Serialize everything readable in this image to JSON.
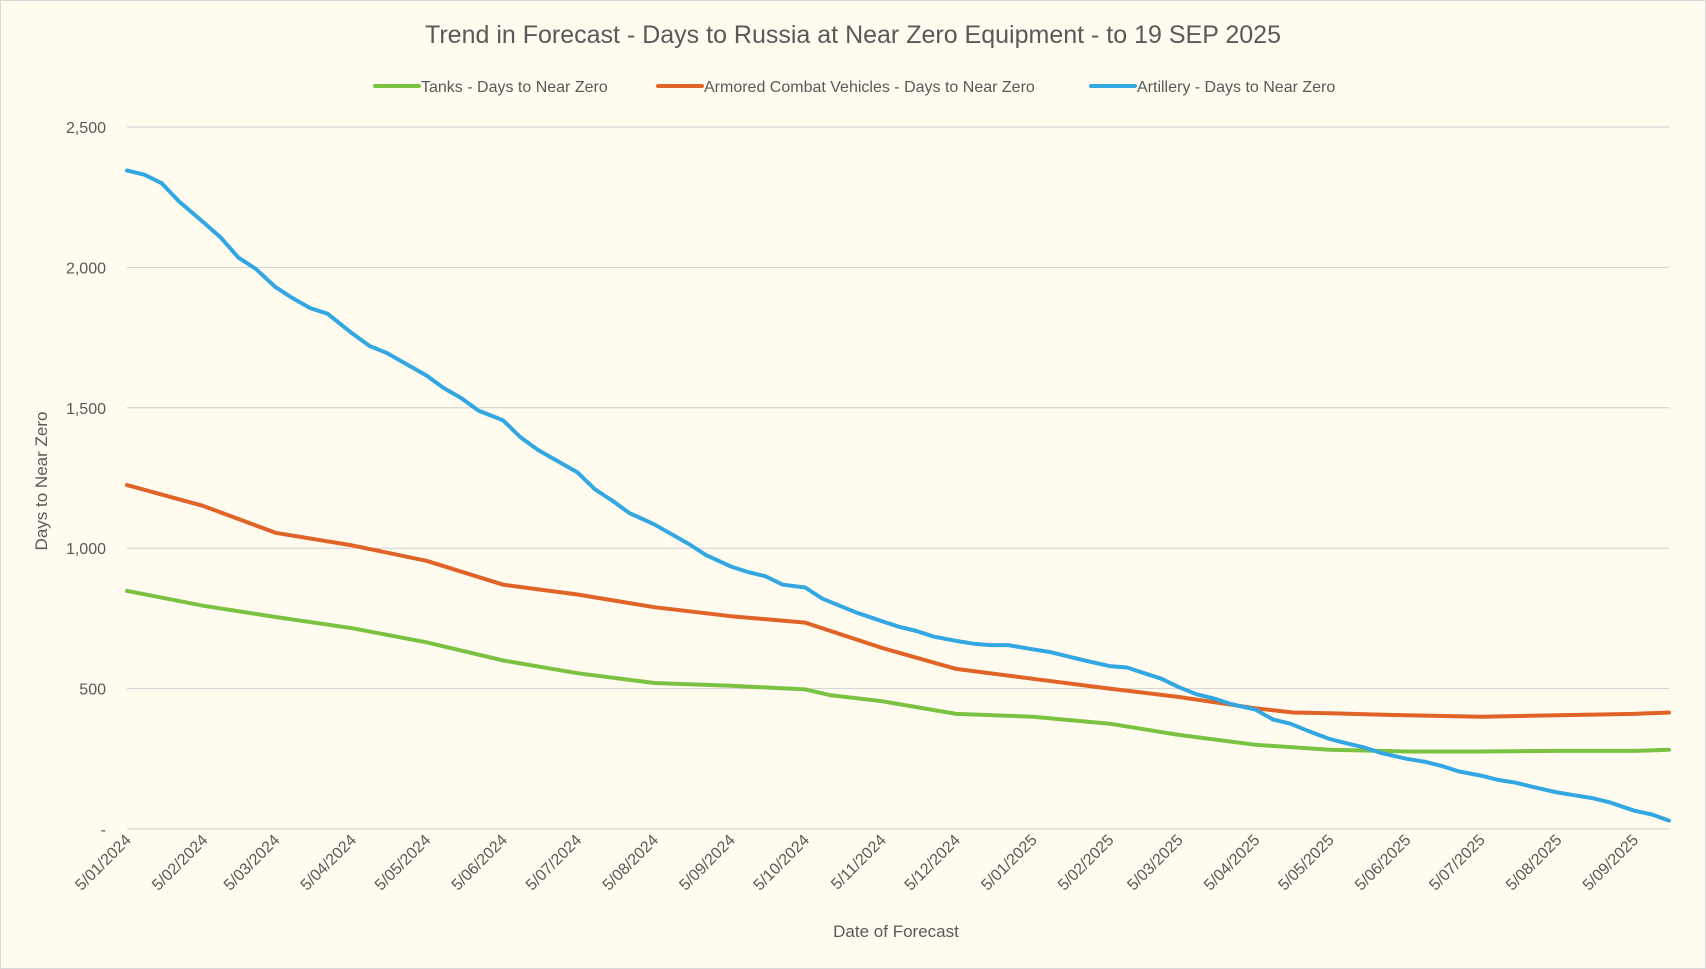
{
  "chart_data": {
    "type": "line",
    "title": "Trend in Forecast - Days to Russia at Near Zero Equipment - to 19 SEP 2025",
    "xlabel": "Date of Forecast",
    "ylabel": "Days to Near Zero",
    "ylim": [
      0,
      2500
    ],
    "y_ticks": [
      0,
      500,
      1000,
      1500,
      2000,
      2500
    ],
    "y_tick_labels": [
      "-",
      "500",
      "1,000",
      "1,500",
      "2,000",
      "2,500"
    ],
    "x_tick_labels": [
      "5/01/2024",
      "5/02/2024",
      "5/03/2024",
      "5/04/2024",
      "5/05/2024",
      "5/06/2024",
      "5/07/2024",
      "5/08/2024",
      "5/09/2024",
      "5/10/2024",
      "5/11/2024",
      "5/12/2024",
      "5/01/2025",
      "5/02/2025",
      "5/03/2025",
      "5/04/2025",
      "5/05/2025",
      "5/06/2025",
      "5/07/2025",
      "5/08/2025",
      "5/09/2025"
    ],
    "x_range": [
      "2024-01-05",
      "2025-09-19"
    ],
    "grid": true,
    "legend_position": "top",
    "series": [
      {
        "name": "Tanks - Days to Near Zero",
        "color": "#7cc242",
        "points": [
          [
            "2024-01-05",
            848
          ],
          [
            "2024-02-05",
            795
          ],
          [
            "2024-03-05",
            755
          ],
          [
            "2024-04-05",
            715
          ],
          [
            "2024-05-05",
            665
          ],
          [
            "2024-06-05",
            600
          ],
          [
            "2024-07-05",
            555
          ],
          [
            "2024-08-05",
            520
          ],
          [
            "2024-09-05",
            510
          ],
          [
            "2024-10-05",
            497
          ],
          [
            "2024-10-15",
            477
          ],
          [
            "2024-11-05",
            455
          ],
          [
            "2024-12-05",
            410
          ],
          [
            "2025-01-05",
            400
          ],
          [
            "2025-02-05",
            375
          ],
          [
            "2025-03-05",
            335
          ],
          [
            "2025-04-05",
            300
          ],
          [
            "2025-05-05",
            282
          ],
          [
            "2025-06-05",
            276
          ],
          [
            "2025-07-05",
            276
          ],
          [
            "2025-08-05",
            278
          ],
          [
            "2025-09-05",
            278
          ],
          [
            "2025-09-19",
            282
          ]
        ]
      },
      {
        "name": "Armored Combat Vehicles - Days to Near Zero",
        "color": "#e06327",
        "points": [
          [
            "2024-01-05",
            1225
          ],
          [
            "2024-02-05",
            1150
          ],
          [
            "2024-03-05",
            1055
          ],
          [
            "2024-04-05",
            1010
          ],
          [
            "2024-05-05",
            955
          ],
          [
            "2024-06-05",
            870
          ],
          [
            "2024-07-05",
            835
          ],
          [
            "2024-08-05",
            790
          ],
          [
            "2024-09-05",
            758
          ],
          [
            "2024-10-05",
            735
          ],
          [
            "2024-11-05",
            645
          ],
          [
            "2024-12-05",
            570
          ],
          [
            "2025-01-05",
            535
          ],
          [
            "2025-02-05",
            500
          ],
          [
            "2025-03-05",
            470
          ],
          [
            "2025-04-05",
            430
          ],
          [
            "2025-04-20",
            415
          ],
          [
            "2025-05-05",
            412
          ],
          [
            "2025-06-05",
            405
          ],
          [
            "2025-07-05",
            400
          ],
          [
            "2025-08-05",
            405
          ],
          [
            "2025-09-05",
            410
          ],
          [
            "2025-09-19",
            415
          ]
        ]
      },
      {
        "name": "Artillery - Days to Near Zero",
        "color": "#33a7e2",
        "points": [
          [
            "2024-01-05",
            2345
          ],
          [
            "2024-01-12",
            2330
          ],
          [
            "2024-01-19",
            2300
          ],
          [
            "2024-01-26",
            2235
          ],
          [
            "2024-02-05",
            2160
          ],
          [
            "2024-02-12",
            2105
          ],
          [
            "2024-02-19",
            2035
          ],
          [
            "2024-02-26",
            1995
          ],
          [
            "2024-03-05",
            1930
          ],
          [
            "2024-03-12",
            1890
          ],
          [
            "2024-03-19",
            1855
          ],
          [
            "2024-03-26",
            1835
          ],
          [
            "2024-04-05",
            1765
          ],
          [
            "2024-04-12",
            1720
          ],
          [
            "2024-04-19",
            1695
          ],
          [
            "2024-04-26",
            1660
          ],
          [
            "2024-05-05",
            1615
          ],
          [
            "2024-05-12",
            1570
          ],
          [
            "2024-05-19",
            1535
          ],
          [
            "2024-05-26",
            1490
          ],
          [
            "2024-06-05",
            1455
          ],
          [
            "2024-06-12",
            1395
          ],
          [
            "2024-06-19",
            1350
          ],
          [
            "2024-06-26",
            1315
          ],
          [
            "2024-07-05",
            1270
          ],
          [
            "2024-07-12",
            1210
          ],
          [
            "2024-07-19",
            1170
          ],
          [
            "2024-07-26",
            1125
          ],
          [
            "2024-08-05",
            1085
          ],
          [
            "2024-08-12",
            1050
          ],
          [
            "2024-08-19",
            1015
          ],
          [
            "2024-08-26",
            975
          ],
          [
            "2024-09-05",
            935
          ],
          [
            "2024-09-12",
            915
          ],
          [
            "2024-09-19",
            900
          ],
          [
            "2024-09-26",
            870
          ],
          [
            "2024-10-05",
            860
          ],
          [
            "2024-10-12",
            820
          ],
          [
            "2024-10-19",
            795
          ],
          [
            "2024-10-26",
            770
          ],
          [
            "2024-11-05",
            740
          ],
          [
            "2024-11-12",
            720
          ],
          [
            "2024-11-19",
            705
          ],
          [
            "2024-11-26",
            685
          ],
          [
            "2024-12-05",
            670
          ],
          [
            "2024-12-12",
            660
          ],
          [
            "2024-12-19",
            655
          ],
          [
            "2024-12-26",
            655
          ],
          [
            "2025-01-05",
            640
          ],
          [
            "2025-01-12",
            630
          ],
          [
            "2025-01-19",
            615
          ],
          [
            "2025-01-26",
            600
          ],
          [
            "2025-02-05",
            580
          ],
          [
            "2025-02-12",
            575
          ],
          [
            "2025-02-19",
            555
          ],
          [
            "2025-02-26",
            535
          ],
          [
            "2025-03-05",
            505
          ],
          [
            "2025-03-12",
            480
          ],
          [
            "2025-03-19",
            465
          ],
          [
            "2025-03-26",
            445
          ],
          [
            "2025-04-05",
            425
          ],
          [
            "2025-04-12",
            390
          ],
          [
            "2025-04-19",
            375
          ],
          [
            "2025-04-26",
            350
          ],
          [
            "2025-05-05",
            320
          ],
          [
            "2025-05-12",
            305
          ],
          [
            "2025-05-19",
            290
          ],
          [
            "2025-05-26",
            270
          ],
          [
            "2025-06-05",
            250
          ],
          [
            "2025-06-12",
            240
          ],
          [
            "2025-06-19",
            225
          ],
          [
            "2025-06-26",
            205
          ],
          [
            "2025-07-05",
            190
          ],
          [
            "2025-07-12",
            175
          ],
          [
            "2025-07-19",
            165
          ],
          [
            "2025-07-26",
            150
          ],
          [
            "2025-08-05",
            130
          ],
          [
            "2025-08-12",
            120
          ],
          [
            "2025-08-19",
            110
          ],
          [
            "2025-08-26",
            95
          ],
          [
            "2025-09-05",
            65
          ],
          [
            "2025-09-12",
            52
          ],
          [
            "2025-09-19",
            30
          ]
        ]
      }
    ]
  }
}
